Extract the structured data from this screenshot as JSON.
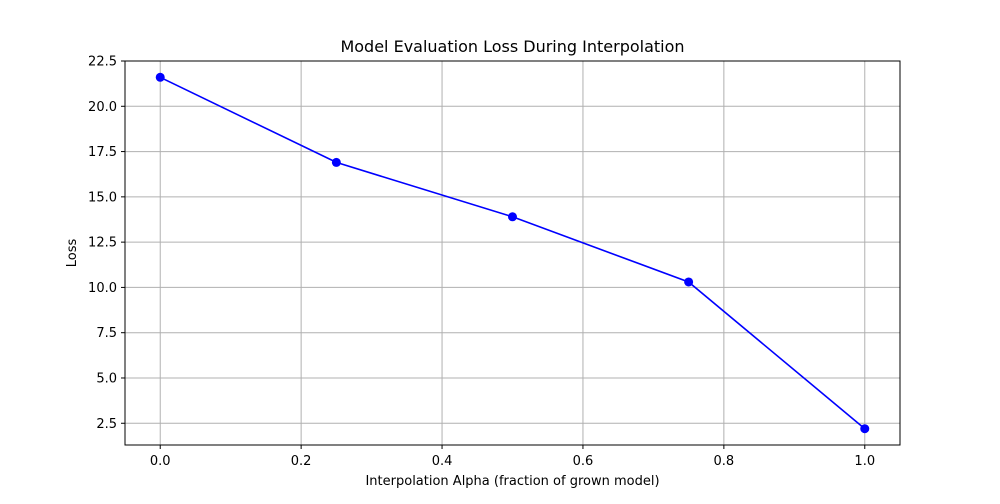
{
  "chart_data": {
    "type": "line",
    "title": "Model Evaluation Loss During Interpolation",
    "xlabel": "Interpolation Alpha (fraction of grown model)",
    "ylabel": "Loss",
    "xlim": [
      -0.05,
      1.05
    ],
    "ylim": [
      1.3,
      22.5
    ],
    "xticks": [
      "0.0",
      "0.2",
      "0.4",
      "0.6",
      "0.8",
      "1.0"
    ],
    "xtick_values": [
      0.0,
      0.2,
      0.4,
      0.6,
      0.8,
      1.0
    ],
    "yticks": [
      "2.5",
      "5.0",
      "7.5",
      "10.0",
      "12.5",
      "15.0",
      "17.5",
      "20.0",
      "22.5"
    ],
    "ytick_values": [
      2.5,
      5.0,
      7.5,
      10.0,
      12.5,
      15.0,
      17.5,
      20.0,
      22.5
    ],
    "grid": true,
    "series": [
      {
        "x": [
          0.0,
          0.25,
          0.5,
          0.75,
          1.0
        ],
        "values": [
          21.6,
          16.9,
          13.9,
          10.3,
          2.2
        ],
        "color": "#0000ff",
        "marker": "circle"
      }
    ]
  }
}
